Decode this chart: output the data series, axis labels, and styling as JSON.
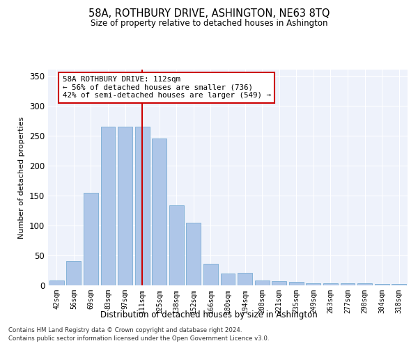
{
  "title": "58A, ROTHBURY DRIVE, ASHINGTON, NE63 8TQ",
  "subtitle": "Size of property relative to detached houses in Ashington",
  "xlabel": "Distribution of detached houses by size in Ashington",
  "ylabel": "Number of detached properties",
  "categories": [
    "42sqm",
    "56sqm",
    "69sqm",
    "83sqm",
    "97sqm",
    "111sqm",
    "125sqm",
    "138sqm",
    "152sqm",
    "166sqm",
    "180sqm",
    "194sqm",
    "208sqm",
    "221sqm",
    "235sqm",
    "249sqm",
    "263sqm",
    "277sqm",
    "290sqm",
    "304sqm",
    "318sqm"
  ],
  "values": [
    8,
    41,
    155,
    265,
    265,
    265,
    245,
    133,
    104,
    36,
    20,
    21,
    8,
    7,
    6,
    4,
    3,
    3,
    4,
    2,
    2
  ],
  "bar_color": "#aec6e8",
  "bar_edge_color": "#7aadd4",
  "vline_x": 5,
  "vline_color": "#cc0000",
  "background_color": "#eef2fb",
  "annotation_text": "58A ROTHBURY DRIVE: 112sqm\n← 56% of detached houses are smaller (736)\n42% of semi-detached houses are larger (549) →",
  "annotation_box_color": "white",
  "annotation_box_edge": "#cc0000",
  "footer1": "Contains HM Land Registry data © Crown copyright and database right 2024.",
  "footer2": "Contains public sector information licensed under the Open Government Licence v3.0.",
  "ylim": [
    0,
    360
  ],
  "yticks": [
    0,
    50,
    100,
    150,
    200,
    250,
    300,
    350
  ]
}
